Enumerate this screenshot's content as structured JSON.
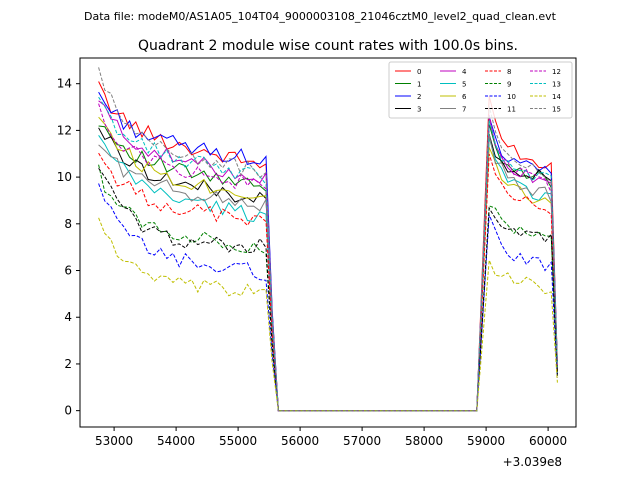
{
  "chart_data": {
    "type": "line",
    "suptitle": "Data file: modeM0/AS1A05_104T04_9000003108_21046cztM0_level2_quad_clean.evt",
    "title": "Quadrant 2 module wise count rates with 100.0s bins.",
    "xlabel": "",
    "ylabel": "",
    "x_offset_label": "+3.039e8",
    "xlim": [
      52450,
      60450
    ],
    "ylim": [
      -0.7,
      15.1
    ],
    "x_ticks": [
      53000,
      54000,
      55000,
      56000,
      57000,
      58000,
      59000,
      60000
    ],
    "y_ticks": [
      0,
      2,
      4,
      6,
      8,
      10,
      12,
      14
    ],
    "x_tick_labels": [
      "53000",
      "54000",
      "55000",
      "56000",
      "57000",
      "58000",
      "59000",
      "60000"
    ],
    "y_tick_labels": [
      "0",
      "2",
      "4",
      "6",
      "8",
      "10",
      "12",
      "14"
    ],
    "grid": false,
    "legend_position": "top-right",
    "segments": [
      {
        "x_start": 52750,
        "x_end": 55450
      },
      {
        "x_start": 59050,
        "x_end": 60050
      }
    ],
    "gap": {
      "x_start": 55650,
      "x_end": 58850,
      "value": 0
    },
    "end_points": {
      "x_first_drop": 55550,
      "x_last": 60150
    },
    "series": [
      {
        "name": "0",
        "color": "#ff0000",
        "dash": "solid",
        "start": 13.8,
        "level": 12.0,
        "end": 10.5,
        "seg2_peak": 13.4,
        "seg2_level": 11.5,
        "seg2_end": 10.5,
        "final": 2.0
      },
      {
        "name": "1",
        "color": "#008000",
        "dash": "solid",
        "start": 12.5,
        "level": 10.8,
        "end": 9.5,
        "seg2_peak": 12.0,
        "seg2_level": 10.5,
        "seg2_end": 9.8,
        "final": 1.8
      },
      {
        "name": "2",
        "color": "#0000ff",
        "dash": "solid",
        "start": 13.6,
        "level": 11.8,
        "end": 10.7,
        "seg2_peak": 12.6,
        "seg2_level": 11.0,
        "seg2_end": 10.2,
        "final": 2.0
      },
      {
        "name": "3",
        "color": "#000000",
        "dash": "solid",
        "start": 12.2,
        "level": 10.3,
        "end": 9.0,
        "seg2_peak": 12.0,
        "seg2_level": 10.5,
        "seg2_end": 10.0,
        "final": 1.8
      },
      {
        "name": "4",
        "color": "#bf00bf",
        "dash": "solid",
        "start": 13.3,
        "level": 11.2,
        "end": 10.0,
        "seg2_peak": 12.4,
        "seg2_level": 10.8,
        "seg2_end": 9.5,
        "final": 1.9
      },
      {
        "name": "5",
        "color": "#00bfbf",
        "dash": "solid",
        "start": 11.7,
        "level": 9.6,
        "end": 8.3,
        "seg2_peak": 11.5,
        "seg2_level": 10.0,
        "seg2_end": 9.0,
        "final": 1.7
      },
      {
        "name": "6",
        "color": "#bfbf00",
        "dash": "solid",
        "start": 12.8,
        "level": 10.3,
        "end": 9.2,
        "seg2_peak": 11.4,
        "seg2_level": 10.0,
        "seg2_end": 8.8,
        "final": 1.7
      },
      {
        "name": "7",
        "color": "#808080",
        "dash": "solid",
        "start": 11.5,
        "level": 9.8,
        "end": 8.8,
        "seg2_peak": 11.8,
        "seg2_level": 10.2,
        "seg2_end": 9.2,
        "final": 1.7
      },
      {
        "name": "8",
        "color": "#ff0000",
        "dash": "dashed",
        "start": 11.0,
        "level": 9.0,
        "end": 8.1,
        "seg2_peak": 11.2,
        "seg2_level": 9.5,
        "seg2_end": 8.5,
        "final": 1.6
      },
      {
        "name": "9",
        "color": "#008000",
        "dash": "dashed",
        "start": 10.2,
        "level": 7.8,
        "end": 7.0,
        "seg2_peak": 9.0,
        "seg2_level": 8.0,
        "seg2_end": 7.3,
        "final": 1.5
      },
      {
        "name": "10",
        "color": "#0000ff",
        "dash": "dashed",
        "start": 9.5,
        "level": 6.7,
        "end": 5.9,
        "seg2_peak": 8.5,
        "seg2_level": 6.8,
        "seg2_end": 6.2,
        "final": 1.4
      },
      {
        "name": "11",
        "color": "#000000",
        "dash": "dashed",
        "start": 10.6,
        "level": 7.3,
        "end": 7.0,
        "seg2_peak": 8.9,
        "seg2_level": 7.8,
        "seg2_end": 7.3,
        "final": 1.5
      },
      {
        "name": "12",
        "color": "#bf00bf",
        "dash": "dashed",
        "start": 12.8,
        "level": 10.8,
        "end": 9.6,
        "seg2_peak": 12.5,
        "seg2_level": 10.8,
        "seg2_end": 9.6,
        "final": 1.9
      },
      {
        "name": "13",
        "color": "#00bfbf",
        "dash": "dashed",
        "start": 13.2,
        "level": 11.3,
        "end": 10.0,
        "seg2_peak": 12.4,
        "seg2_level": 10.8,
        "seg2_end": 9.8,
        "final": 1.9
      },
      {
        "name": "14",
        "color": "#bfbf00",
        "dash": "dashed",
        "start": 8.3,
        "level": 5.3,
        "end": 5.1,
        "seg2_peak": 6.5,
        "seg2_level": 5.8,
        "seg2_end": 5.2,
        "final": 1.2
      },
      {
        "name": "15",
        "color": "#808080",
        "dash": "dashed",
        "start": 14.4,
        "level": 11.5,
        "end": 10.2,
        "seg2_peak": 12.8,
        "seg2_level": 11.0,
        "seg2_end": 10.0,
        "final": 2.0
      }
    ]
  }
}
